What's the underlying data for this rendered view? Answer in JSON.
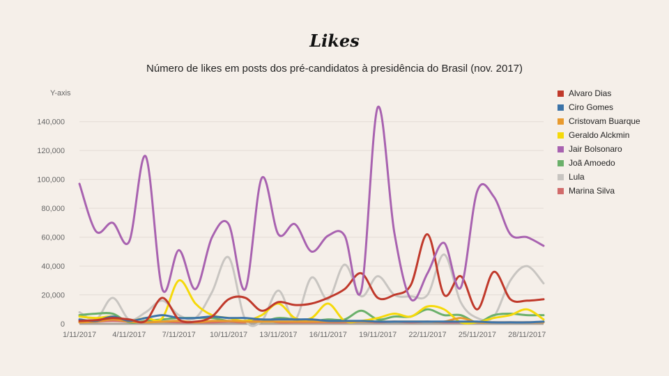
{
  "chart_data": {
    "type": "line",
    "title": "Likes",
    "subtitle": "Número de likes em posts dos pré-candidatos à presidência do Brasil (nov. 2017)",
    "ylabel": "Y-axis",
    "ylim": [
      0,
      150000
    ],
    "yticks": [
      0,
      20000,
      40000,
      60000,
      80000,
      100000,
      120000,
      140000
    ],
    "ytick_labels": [
      "0",
      "20,000",
      "40,000",
      "60,000",
      "80,000",
      "100,000",
      "120,000",
      "140,000"
    ],
    "x": [
      "1/11/2017",
      "2/11/2017",
      "3/11/2017",
      "4/11/2017",
      "5/11/2017",
      "6/11/2017",
      "7/11/2017",
      "8/11/2017",
      "9/11/2017",
      "10/11/2017",
      "11/11/2017",
      "12/11/2017",
      "13/11/2017",
      "14/11/2017",
      "15/11/2017",
      "16/11/2017",
      "17/11/2017",
      "18/11/2017",
      "19/11/2017",
      "20/11/2017",
      "21/11/2017",
      "22/11/2017",
      "23/11/2017",
      "24/11/2017",
      "25/11/2017",
      "26/11/2017",
      "27/11/2017",
      "28/11/2017",
      "29/11/2017"
    ],
    "xtick_labels": [
      "1/11/2017",
      "4/11/2017",
      "7/11/2017",
      "10/11/2017",
      "13/11/2017",
      "16/11/2017",
      "19/11/2017",
      "22/11/2017",
      "25/11/2017",
      "28/11/2017"
    ],
    "xtick_index": [
      0,
      3,
      6,
      9,
      12,
      15,
      18,
      21,
      24,
      27
    ],
    "legend_position": "right",
    "series": [
      {
        "name": "Alvaro Dias",
        "color": "#c0392b",
        "values": [
          2000,
          2500,
          4000,
          3000,
          2000,
          18000,
          3000,
          1500,
          5000,
          17000,
          18000,
          9000,
          15000,
          13000,
          14000,
          18000,
          24000,
          35000,
          18000,
          20000,
          27000,
          62000,
          20000,
          33000,
          10000,
          36000,
          17000,
          16000,
          17000
        ]
      },
      {
        "name": "Ciro Gomes",
        "color": "#3b73a8",
        "values": [
          3000,
          2000,
          5000,
          2000,
          4000,
          6000,
          4000,
          4000,
          5000,
          4000,
          4000,
          3000,
          3000,
          3000,
          3000,
          2000,
          2000,
          2000,
          1500,
          1500,
          1500,
          1500,
          1500,
          1500,
          1500,
          1000,
          1000,
          1000,
          1500
        ]
      },
      {
        "name": "Cristovam Buarque",
        "color": "#e89a2e",
        "values": [
          1000,
          1500,
          3000,
          1500,
          1000,
          1500,
          2000,
          1000,
          2000,
          2000,
          1500,
          1500,
          1500,
          1500,
          1500,
          1500,
          1500,
          1500,
          1500,
          1500,
          1500,
          1500,
          1500,
          4000,
          1000,
          1000,
          1000,
          1000,
          1000
        ]
      },
      {
        "name": "Geraldo Alckmin",
        "color": "#f5d90a",
        "values": [
          5000,
          4000,
          5000,
          2000,
          4000,
          4000,
          30000,
          14000,
          6000,
          4000,
          2000,
          6000,
          14000,
          4000,
          4000,
          14000,
          2000,
          2000,
          4000,
          7000,
          5000,
          12000,
          10000,
          1000,
          1000,
          4000,
          6000,
          10000,
          3000
        ]
      },
      {
        "name": "Jair Bolsonaro",
        "color": "#a862b0",
        "values": [
          97000,
          64000,
          70000,
          57000,
          116000,
          24000,
          51000,
          24000,
          60000,
          69000,
          24000,
          101000,
          62000,
          69000,
          50000,
          61000,
          61000,
          23000,
          150000,
          63000,
          17000,
          35000,
          56000,
          25000,
          92000,
          88000,
          62000,
          60000,
          54000
        ]
      },
      {
        "name": "Joã Amoedo",
        "color": "#6ab06a",
        "values": [
          6000,
          7000,
          7000,
          1000,
          2000,
          3000,
          4000,
          4000,
          4000,
          2000,
          2000,
          1500,
          4000,
          3000,
          2000,
          3000,
          3000,
          9000,
          3000,
          5000,
          5000,
          10000,
          6000,
          6000,
          1000,
          6000,
          7000,
          6000,
          6000
        ]
      },
      {
        "name": "Lula",
        "color": "#c8c5c1",
        "values": [
          8000,
          3000,
          18000,
          3000,
          8000,
          16000,
          6000,
          4000,
          22000,
          46000,
          3000,
          2000,
          23000,
          3000,
          32000,
          17000,
          41000,
          19000,
          33000,
          20000,
          19000,
          20000,
          48000,
          15000,
          4000,
          5000,
          30000,
          40000,
          28000
        ]
      },
      {
        "name": "Marina Silva",
        "color": "#d16b6b",
        "values": [
          1000,
          1500,
          2000,
          1500,
          1000,
          1500,
          1000,
          1000,
          1000,
          1500,
          1000,
          3000,
          1000,
          1000,
          1000,
          1000,
          1000,
          1500,
          1000,
          1500,
          1000,
          1500,
          1000,
          1000,
          1000,
          1000,
          1000,
          1000,
          1000
        ]
      }
    ]
  }
}
